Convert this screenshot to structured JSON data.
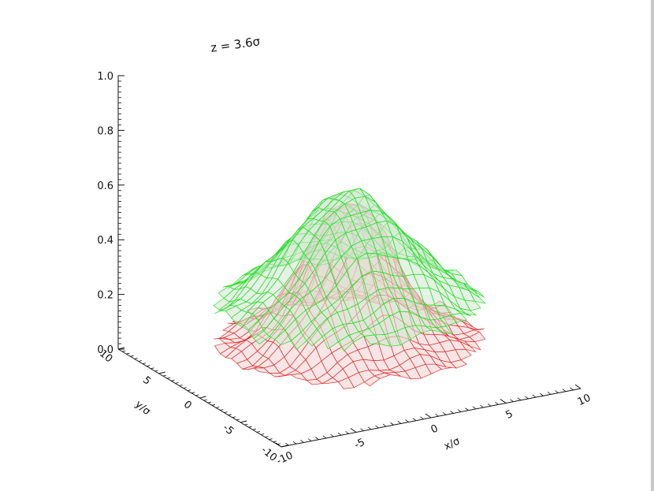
{
  "chart_data": {
    "type": "surface3d",
    "title": "z = 3.6σ",
    "z_axis": {
      "range": [
        0.0,
        1.0
      ],
      "ticks": [
        "0.0",
        "0.2",
        "0.4",
        "0.6",
        "0.8",
        "1.0"
      ]
    },
    "x_axis": {
      "label": "x/σ",
      "range": [
        -10,
        10
      ],
      "ticks": [
        "-10",
        "-5",
        "0",
        "5",
        "10"
      ]
    },
    "y_axis": {
      "label": "y/σ",
      "range": [
        -10,
        10
      ],
      "ticks": [
        "-10",
        "-5",
        "0",
        "5",
        "10"
      ]
    },
    "series": [
      {
        "color": "#22dd22",
        "peak": 0.64,
        "base_level": 0.2
      },
      {
        "color": "#dd3333",
        "peak": 0.62,
        "base_level": 0.1
      }
    ]
  }
}
